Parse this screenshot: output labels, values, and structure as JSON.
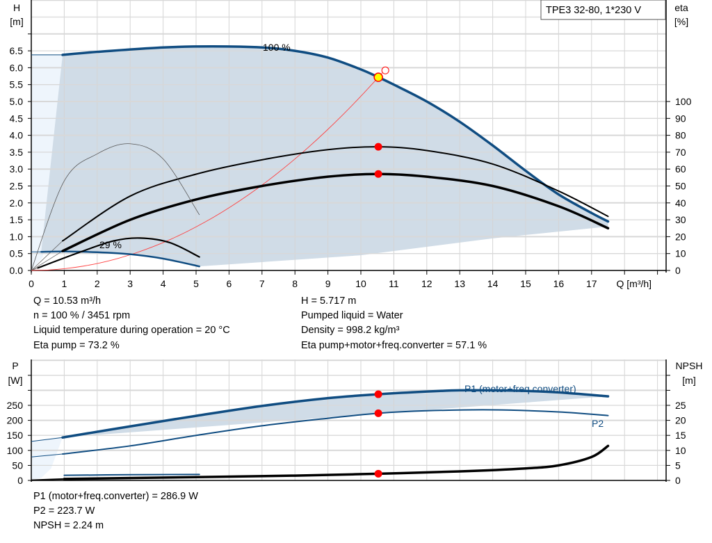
{
  "chart_data": [
    {
      "type": "line",
      "title": "TPE3 32-80, 1*230 V",
      "xlabel": "Q [m³/h]",
      "ylabel": [
        "H",
        "[m]"
      ],
      "y2label": [
        "eta",
        "[%]"
      ],
      "xlim": [
        0,
        19
      ],
      "ylim": [
        0,
        8
      ],
      "y2lim": [
        0,
        100
      ],
      "grid": true,
      "x_ticks": [
        "0",
        "1",
        "2",
        "3",
        "4",
        "5",
        "6",
        "7",
        "8",
        "9",
        "10",
        "11",
        "12",
        "13",
        "14",
        "15",
        "16",
        "17"
      ],
      "y_ticks": [
        "0.0",
        "0.5",
        "1.0",
        "1.5",
        "2.0",
        "2.5",
        "3.0",
        "3.5",
        "4.0",
        "4.5",
        "5.0",
        "5.5",
        "6.0",
        "6.5"
      ],
      "y2_ticks": [
        "0",
        "10",
        "20",
        "30",
        "40",
        "50",
        "60",
        "70",
        "80",
        "90",
        "100"
      ],
      "annotations": [
        "100 %",
        "29 %"
      ],
      "series": [
        {
          "axis": "H",
          "color": "#0f4c81",
          "points": [
            [
              0.95,
              6.38
            ],
            [
              2,
              6.47
            ],
            [
              4,
              6.6
            ],
            [
              5.5,
              6.63
            ],
            [
              7,
              6.6
            ],
            [
              8,
              6.5
            ],
            [
              9,
              6.3
            ],
            [
              10,
              5.95
            ],
            [
              10.53,
              5.72
            ],
            [
              11,
              5.5
            ],
            [
              12,
              5.0
            ],
            [
              13,
              4.4
            ],
            [
              14,
              3.7
            ],
            [
              15,
              2.95
            ],
            [
              16,
              2.25
            ],
            [
              17,
              1.7
            ],
            [
              17.5,
              1.45
            ]
          ]
        },
        {
          "axis": "H",
          "color": "#0f4c81",
          "points": [
            [
              0.3,
              0.55
            ],
            [
              1,
              0.56
            ],
            [
              2,
              0.54
            ],
            [
              3,
              0.48
            ],
            [
              4,
              0.35
            ],
            [
              5.1,
              0.12
            ]
          ]
        },
        {
          "axis": "eta",
          "color": "#000000",
          "points": [
            [
              0.95,
              17.5
            ],
            [
              3,
              44
            ],
            [
              5,
              57
            ],
            [
              7,
              65.5
            ],
            [
              9,
              71.5
            ],
            [
              10.53,
              73.2
            ],
            [
              12,
              71
            ],
            [
              14,
              63
            ],
            [
              16,
              47
            ],
            [
              17.5,
              32
            ]
          ]
        },
        {
          "axis": "eta",
          "color": "#000000",
          "points": [
            [
              0.95,
              11.5
            ],
            [
              3,
              30
            ],
            [
              5,
              42
            ],
            [
              7,
              50
            ],
            [
              9,
              55.5
            ],
            [
              10.53,
              57.1
            ],
            [
              12,
              55.5
            ],
            [
              14,
              50
            ],
            [
              16,
              38
            ],
            [
              17.5,
              25
            ]
          ]
        },
        {
          "axis": "eta",
          "color": "#555555",
          "points": [
            [
              0,
              0
            ],
            [
              1,
              53
            ],
            [
              2,
              69
            ],
            [
              3,
              75
            ],
            [
              4,
              66
            ],
            [
              5.1,
              33
            ]
          ]
        },
        {
          "axis": "eta",
          "color": "#000000",
          "points": [
            [
              0.2,
              1.5
            ],
            [
              1.5,
              11
            ],
            [
              2.5,
              17.5
            ],
            [
              3.3,
              19.2
            ],
            [
              4.2,
              16.5
            ],
            [
              5.1,
              8
            ]
          ]
        }
      ],
      "system_curve": {
        "color": "#ff4040",
        "q_end": 10.53,
        "h_end": 5.717
      },
      "duty_point": {
        "q": 10.53,
        "h": 5.717,
        "eta_pump": 73.2,
        "eta_total": 57.1
      },
      "colors": {
        "fill": "#d0dce7",
        "fill_light": "#eef5fc",
        "curve": "#0f4c81",
        "marker": "#ff0000",
        "duty": "#ffff00"
      }
    },
    {
      "type": "line",
      "ylabel": [
        "P",
        "[W]"
      ],
      "y2label": [
        "NPSH",
        "[m]"
      ],
      "xlim": [
        0,
        19
      ],
      "ylim": [
        0,
        400
      ],
      "y2lim": [
        0,
        40
      ],
      "grid": true,
      "y_ticks": [
        "0",
        "50",
        "100",
        "150",
        "200",
        "250"
      ],
      "y2_ticks": [
        "0",
        "5",
        "10",
        "15",
        "20",
        "25"
      ],
      "series": [
        {
          "name": "P1 (motor+freq.converter)",
          "axis": "P",
          "color": "#0f4c81",
          "points": [
            [
              0.95,
              143
            ],
            [
              3,
              180
            ],
            [
              5,
              215
            ],
            [
              7,
              248
            ],
            [
              9,
              274
            ],
            [
              10.53,
              286.9
            ],
            [
              12,
              296
            ],
            [
              13,
              300
            ],
            [
              14,
              300
            ],
            [
              15,
              298
            ],
            [
              16,
              293
            ],
            [
              17.5,
              280
            ]
          ]
        },
        {
          "name": "P2",
          "axis": "P",
          "color": "#0f4c81",
          "points": [
            [
              0.95,
              88
            ],
            [
              3,
              115
            ],
            [
              5,
              150
            ],
            [
              7,
              182
            ],
            [
              9,
              207
            ],
            [
              10.53,
              223.7
            ],
            [
              12,
              232
            ],
            [
              14,
              235
            ],
            [
              16,
              228
            ],
            [
              17.5,
              216
            ]
          ]
        },
        {
          "axis": "P",
          "color": "#0f4c81",
          "points": [
            [
              1,
              17
            ],
            [
              3,
              19
            ],
            [
              5.1,
              20
            ]
          ]
        },
        {
          "axis": "NPSH",
          "color": "#000000",
          "points": [
            [
              1,
              0.5
            ],
            [
              5,
              1.1
            ],
            [
              8,
              1.6
            ],
            [
              10.53,
              2.24
            ],
            [
              13,
              3.0
            ],
            [
              15,
              4.0
            ],
            [
              16,
              5.0
            ],
            [
              17,
              7.8
            ],
            [
              17.5,
              11.5
            ]
          ]
        }
      ]
    }
  ],
  "info_top": {
    "q": "Q = 10.53 m³/h",
    "n": "n = 100 % / 3451 rpm",
    "temp": "Liquid temperature during operation = 20 °C",
    "eta_pump": "Eta pump = 73.2 %",
    "h": "H = 5.717 m",
    "liquid": "Pumped liquid = Water",
    "density": "Density = 998.2 kg/m³",
    "eta_total": "Eta pump+motor+freq.converter = 57.1 %"
  },
  "info_bottom": {
    "p1": "P1 (motor+freq.converter) = 286.9 W",
    "p2": "P2 = 223.7 W",
    "npsh": "NPSH = 2.24 m"
  }
}
